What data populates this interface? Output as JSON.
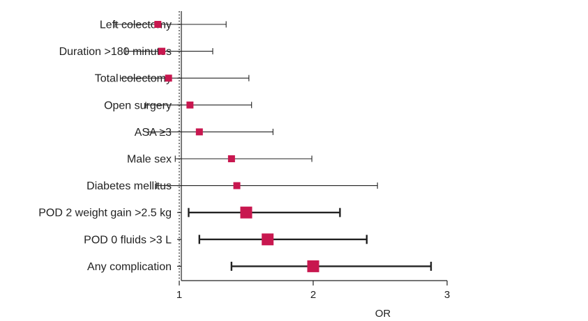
{
  "chart_data": {
    "type": "forest",
    "xlabel": "OR",
    "xlim": [
      0,
      3
    ],
    "xticks": [
      1,
      2,
      3
    ],
    "reference_line": 1,
    "marker_color": "#c8174f",
    "categories": [
      "Left colectomy",
      "Duration >180 minutes",
      "Total colectomy",
      "Open surgery",
      "ASA ≥3",
      "Male sex",
      "Diabetes mellitus",
      "POD 2 weight gain >2.5 kg",
      "POD 0 fluids >3 L",
      "Any complication"
    ],
    "points": [
      {
        "or": 0.84,
        "lower": 0.52,
        "upper": 1.35,
        "significant": false
      },
      {
        "or": 0.87,
        "lower": 0.6,
        "upper": 1.25,
        "significant": false
      },
      {
        "or": 0.92,
        "lower": 0.56,
        "upper": 1.52,
        "significant": false
      },
      {
        "or": 1.08,
        "lower": 0.75,
        "upper": 1.54,
        "significant": false
      },
      {
        "or": 1.15,
        "lower": 0.77,
        "upper": 1.7,
        "significant": false
      },
      {
        "or": 1.39,
        "lower": 0.97,
        "upper": 1.99,
        "significant": false
      },
      {
        "or": 1.43,
        "lower": 0.83,
        "upper": 2.48,
        "significant": false
      },
      {
        "or": 1.5,
        "lower": 1.07,
        "upper": 2.2,
        "significant": true
      },
      {
        "or": 1.66,
        "lower": 1.15,
        "upper": 2.4,
        "significant": true
      },
      {
        "or": 2.0,
        "lower": 1.39,
        "upper": 2.88,
        "significant": true
      }
    ]
  }
}
